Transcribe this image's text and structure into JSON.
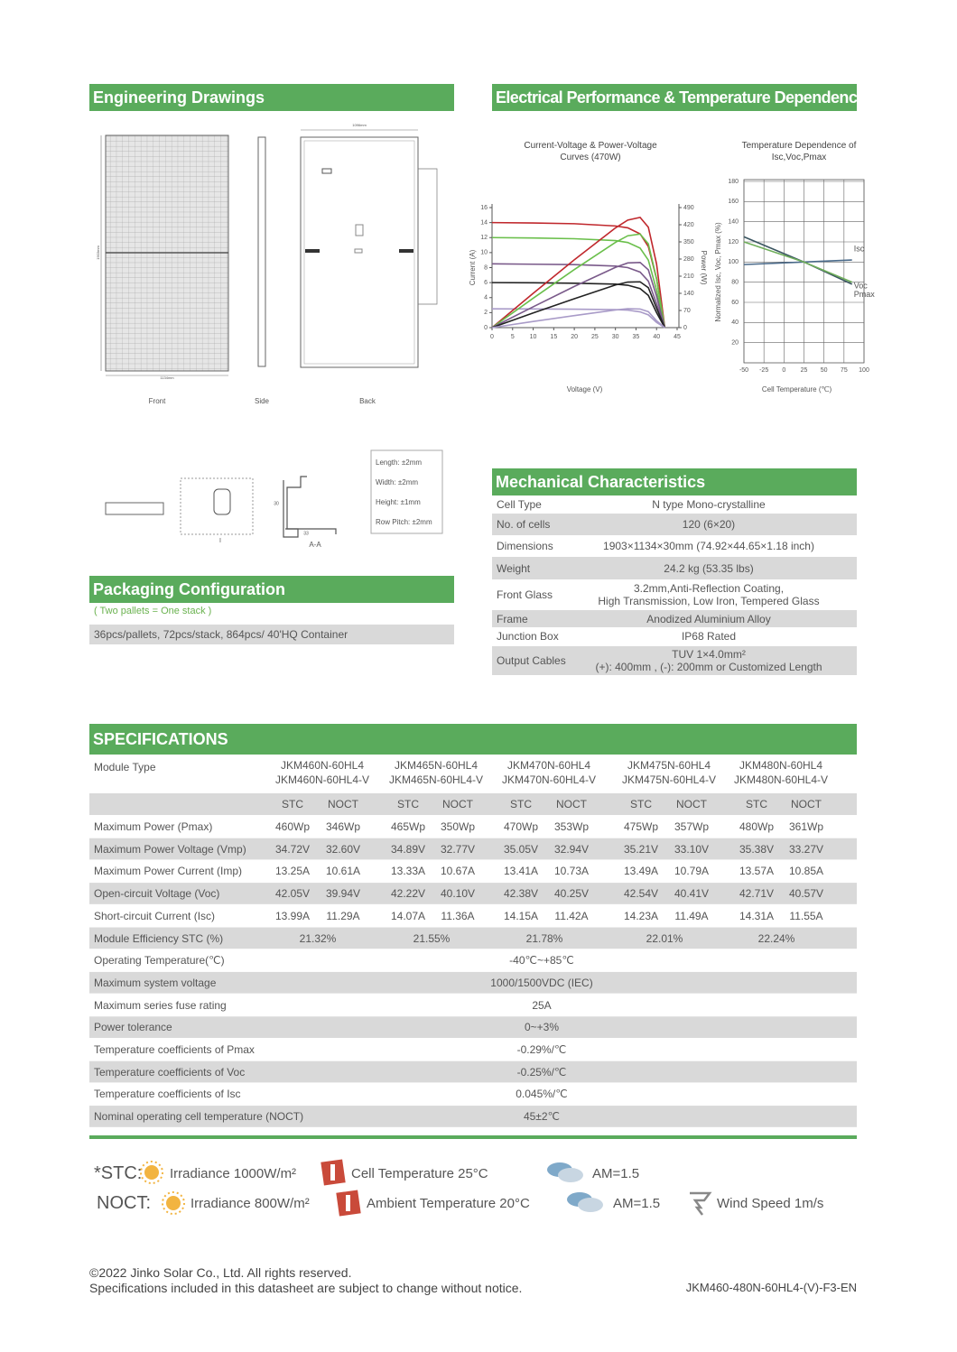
{
  "engineering_drawings": {
    "title": "Engineering Drawings",
    "views": [
      "Front",
      "Side",
      "Back"
    ],
    "dimensions": [
      "1903mm",
      "1134mm",
      "1096mm"
    ],
    "detail_labels": [
      "I",
      "A-A",
      "33",
      "30"
    ],
    "tolerances": [
      "Length: ±2mm",
      "Width: ±2mm",
      "Height: ±1mm",
      "Row Pitch: ±2mm"
    ]
  },
  "electrical": {
    "title": "Electrical Performance & Temperature Dependence"
  },
  "chart_data": [
    {
      "type": "line",
      "title": "Current-Voltage & Power-Voltage Curves (470W)",
      "x_label": "Voltage (V)",
      "y_label": "Current (A)",
      "y2_label": "Power (W)",
      "x": [
        0,
        10,
        20,
        30,
        33,
        36,
        38,
        40,
        42
      ],
      "xlim": [
        0,
        45
      ],
      "xticks": [
        0,
        5,
        10,
        15,
        20,
        25,
        30,
        35,
        40,
        45
      ],
      "ylim": [
        0,
        16
      ],
      "yticks": [
        0,
        2,
        4,
        6,
        8,
        10,
        12,
        14,
        16
      ],
      "y2lim": [
        0,
        490
      ],
      "y2ticks": [
        0,
        70,
        140,
        210,
        280,
        350,
        420,
        490
      ],
      "grid": false,
      "series": [
        {
          "color": "#c0282d",
          "values": [
            14,
            13.95,
            13.85,
            13.55,
            13.3,
            12.5,
            10.8,
            6.5,
            0
          ]
        },
        {
          "color": "#6abf4b",
          "values": [
            12,
            11.95,
            11.85,
            11.6,
            11.35,
            10.6,
            9,
            5,
            0
          ]
        },
        {
          "color": "#7a5a8a",
          "values": [
            8.5,
            8.45,
            8.4,
            8.2,
            8,
            7.4,
            6.2,
            3.2,
            0
          ]
        },
        {
          "color": "#222222",
          "values": [
            6,
            5.98,
            5.92,
            5.8,
            5.65,
            5.2,
            4.3,
            2,
            0
          ]
        },
        {
          "color": "#a99bc8",
          "values": [
            2.5,
            2.49,
            2.46,
            2.4,
            2.33,
            2.1,
            1.7,
            0.7,
            0
          ]
        },
        {
          "color": "#c0282d",
          "axis": "y2",
          "values": [
            0,
            140,
            277,
            407,
            439,
            450,
            410,
            260,
            0
          ]
        },
        {
          "color": "#6abf4b",
          "axis": "y2",
          "values": [
            0,
            120,
            237,
            348,
            375,
            382,
            342,
            200,
            0
          ]
        },
        {
          "color": "#7a5a8a",
          "axis": "y2",
          "values": [
            0,
            85,
            168,
            246,
            264,
            266,
            236,
            128,
            0
          ]
        },
        {
          "color": "#222222",
          "axis": "y2",
          "values": [
            0,
            60,
            118,
            174,
            186,
            187,
            163,
            80,
            0
          ]
        },
        {
          "color": "#a99bc8",
          "axis": "y2",
          "values": [
            0,
            25,
            49,
            72,
            77,
            76,
            65,
            28,
            0
          ]
        }
      ]
    },
    {
      "type": "line",
      "title": "Temperature Dependence of Isc,Voc,Pmax",
      "x_label": "Cell Temperature (℃)",
      "y_label": "Normalized Isc, Voc, Pmax (%)",
      "x": [
        -50,
        25,
        85
      ],
      "xlim": [
        -50,
        100
      ],
      "xticks": [
        -50,
        -25,
        0,
        25,
        50,
        75,
        100
      ],
      "ylim": [
        0,
        180
      ],
      "yticks": [
        20,
        40,
        60,
        80,
        100,
        120,
        140,
        160,
        180
      ],
      "grid": true,
      "series": [
        {
          "name": "Isc",
          "color": "#4a6a8a",
          "values": [
            97.5,
            100,
            102
          ]
        },
        {
          "name": "Voc",
          "color": "#3a5560",
          "values": [
            125,
            100,
            78
          ]
        },
        {
          "name": "Pmax",
          "color": "#6fae5a",
          "values": [
            120,
            100,
            80
          ]
        }
      ]
    }
  ],
  "mechanical": {
    "title": "Mechanical Characteristics",
    "rows": [
      {
        "label": "Cell Type",
        "value": [
          "N type Mono-crystalline"
        ]
      },
      {
        "label": "No. of cells",
        "value": [
          "120 (6×20)"
        ]
      },
      {
        "label": "Dimensions",
        "value": [
          "1903×1134×30mm (74.92×44.65×1.18 inch)"
        ]
      },
      {
        "label": "Weight",
        "value": [
          "24.2 kg (53.35 lbs)"
        ]
      },
      {
        "label": "Front Glass",
        "value": [
          "3.2mm,Anti-Reflection Coating,",
          "High Transmission, Low Iron, Tempered Glass"
        ]
      },
      {
        "label": "Frame",
        "value": [
          "Anodized Aluminium Alloy"
        ]
      },
      {
        "label": "Junction Box",
        "value": [
          "IP68 Rated"
        ]
      },
      {
        "label": "Output Cables",
        "value": [
          "TUV 1×4.0mm²",
          "(+): 400mm , (-): 200mm or Customized Length"
        ]
      }
    ]
  },
  "packaging": {
    "title": "Packaging Configuration",
    "note": "( Two pallets = One stack )",
    "text": "36pcs/pallets, 72pcs/stack, 864pcs/ 40'HQ Container"
  },
  "specifications": {
    "title": "SPECIFICATIONS",
    "module_type_label": "Module Type",
    "models": [
      [
        "JKM460N-60HL4",
        "JKM460N-60HL4-V"
      ],
      [
        "JKM465N-60HL4",
        "JKM465N-60HL4-V"
      ],
      [
        "JKM470N-60HL4",
        "JKM470N-60HL4-V"
      ],
      [
        "JKM475N-60HL4",
        "JKM475N-60HL4-V"
      ],
      [
        "JKM480N-60HL4",
        "JKM480N-60HL4-V"
      ]
    ],
    "conditions": [
      "STC",
      "NOCT"
    ],
    "rows": [
      {
        "label": "Maximum Power (Pmax)",
        "values": [
          "460Wp",
          "346Wp",
          "465Wp",
          "350Wp",
          "470Wp",
          "353Wp",
          "475Wp",
          "357Wp",
          "480Wp",
          "361Wp"
        ]
      },
      {
        "label": "Maximum Power Voltage (Vmp)",
        "values": [
          "34.72V",
          "32.60V",
          "34.89V",
          "32.77V",
          "35.05V",
          "32.94V",
          "35.21V",
          "33.10V",
          "35.38V",
          "33.27V"
        ]
      },
      {
        "label": "Maximum Power Current (Imp)",
        "values": [
          "13.25A",
          "10.61A",
          "13.33A",
          "10.67A",
          "13.41A",
          "10.73A",
          "13.49A",
          "10.79A",
          "13.57A",
          "10.85A"
        ]
      },
      {
        "label": "Open-circuit Voltage (Voc)",
        "values": [
          "42.05V",
          "39.94V",
          "42.22V",
          "40.10V",
          "42.38V",
          "40.25V",
          "42.54V",
          "40.41V",
          "42.71V",
          "40.57V"
        ]
      },
      {
        "label": "Short-circuit Current (Isc)",
        "values": [
          "13.99A",
          "11.29A",
          "14.07A",
          "11.36A",
          "14.15A",
          "11.42A",
          "14.23A",
          "11.49A",
          "14.31A",
          "11.55A"
        ]
      },
      {
        "label": "Module Efficiency STC (%)",
        "values": [
          "21.32%",
          "21.55%",
          "21.78%",
          "22.01%",
          "22.24%"
        ]
      },
      {
        "label": "Operating Temperature(℃)",
        "values": [
          "-40℃~+85℃"
        ]
      },
      {
        "label": "Maximum system voltage",
        "values": [
          "1000/1500VDC (IEC)"
        ]
      },
      {
        "label": "Maximum series fuse rating",
        "values": [
          "25A"
        ]
      },
      {
        "label": "Power tolerance",
        "values": [
          "0~+3%"
        ]
      },
      {
        "label": "Temperature coefficients of Pmax",
        "values": [
          "-0.29%/℃"
        ]
      },
      {
        "label": "Temperature coefficients of Voc",
        "values": [
          "-0.25%/℃"
        ]
      },
      {
        "label": "Temperature coefficients of Isc",
        "values": [
          "0.045%/℃"
        ]
      },
      {
        "label": "Nominal operating cell temperature  (NOCT)",
        "values": [
          "45±2℃"
        ]
      }
    ]
  },
  "conditions": {
    "stc": {
      "label": "*STC:",
      "irradiance": "Irradiance 1000W/m²",
      "temperature": "Cell Temperature 25°C",
      "am": "AM=1.5"
    },
    "noct": {
      "label": "NOCT:",
      "irradiance": "Irradiance 800W/m²",
      "temperature": "Ambient Temperature 20°C",
      "am": "AM=1.5",
      "wind": "Wind Speed 1m/s"
    }
  },
  "footer": {
    "copyright": "©2022 Jinko Solar Co., Ltd. All rights reserved.",
    "notice": "Specifications included in this datasheet are subject to change without notice.",
    "code": "JKM460-480N-60HL4-(V)-F3-EN"
  }
}
